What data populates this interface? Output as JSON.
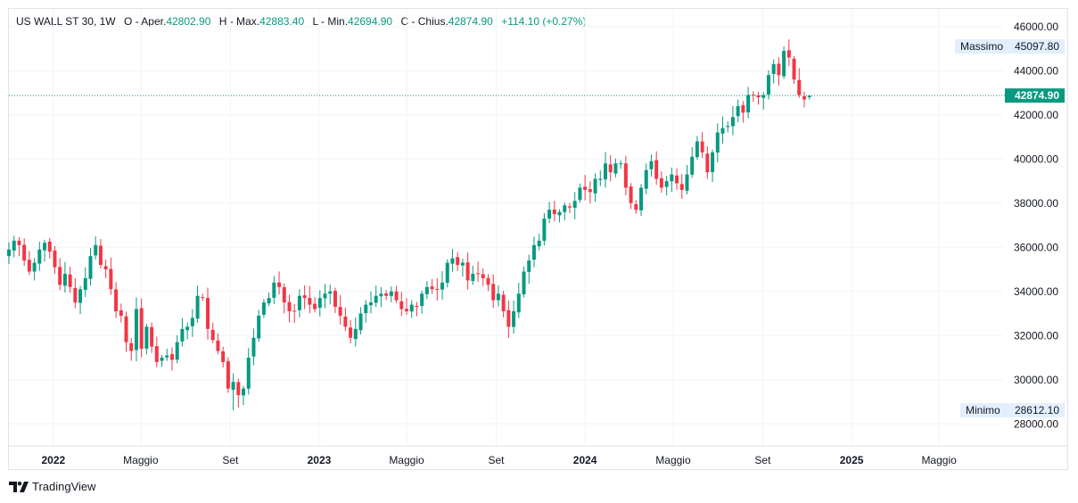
{
  "legend": {
    "symbol": "US WALL ST 30",
    "interval": "1W",
    "open_label": "O - Aper.",
    "open": "42802.90",
    "high_label": "H - Max.",
    "high": "42883.40",
    "low_label": "L - Min.",
    "low": "42694.90",
    "close_label": "C - Chius.",
    "close": "42874.90",
    "change": "+114.10 (+0.27%)"
  },
  "price_tags": {
    "max_label": "Massimo",
    "max_value": "45097.80",
    "min_label": "Minimo",
    "min_value": "28612.10",
    "last_value": "42874.90"
  },
  "brand": "TradingView",
  "colors": {
    "up": "#089981",
    "down": "#f23645",
    "grid": "#f0f3fa",
    "last": "#089981"
  },
  "chart_data": {
    "type": "candlestick",
    "interval": "weekly",
    "y_axis": {
      "range": [
        27000,
        46800
      ],
      "ticks": [
        "46000.00",
        "44000.00",
        "42000.00",
        "40000.00",
        "38000.00",
        "36000.00",
        "34000.00",
        "32000.00",
        "30000.00",
        "28000.00"
      ],
      "position": "right"
    },
    "x_axis": {
      "ticks": [
        {
          "label": "2022",
          "date": "2022-01-01",
          "bold": true
        },
        {
          "label": "Maggio",
          "date": "2022-05-01",
          "bold": false
        },
        {
          "label": "Set",
          "date": "2022-09-01",
          "bold": false
        },
        {
          "label": "2023",
          "date": "2023-01-01",
          "bold": true
        },
        {
          "label": "Maggio",
          "date": "2023-05-01",
          "bold": false
        },
        {
          "label": "Set",
          "date": "2023-09-01",
          "bold": false
        },
        {
          "label": "2024",
          "date": "2024-01-01",
          "bold": true
        },
        {
          "label": "Maggio",
          "date": "2024-05-01",
          "bold": false
        },
        {
          "label": "Set",
          "date": "2024-09-01",
          "bold": false
        },
        {
          "label": "2025",
          "date": "2025-01-01",
          "bold": true
        },
        {
          "label": "Maggio",
          "date": "2025-05-01",
          "bold": false
        }
      ],
      "range": [
        "2021-11-01",
        "2025-07-28"
      ]
    },
    "first_week": "2021-11-01",
    "highest": 45097.8,
    "lowest": 28612.1,
    "last_price": 42874.9,
    "weekly_closes": [
      35900,
      36300,
      36100,
      35400,
      34900,
      35300,
      35900,
      36200,
      35800,
      35100,
      34300,
      34800,
      34200,
      33500,
      34100,
      34600,
      35600,
      36100,
      35200,
      35000,
      34100,
      33100,
      32900,
      31700,
      31300,
      33200,
      31400,
      32400,
      31500,
      30800,
      31000,
      31100,
      30900,
      31700,
      32300,
      32400,
      32800,
      33800,
      33700,
      32300,
      31800,
      31300,
      30800,
      29600,
      29900,
      29300,
      29600,
      31000,
      31900,
      32900,
      33500,
      33700,
      34400,
      34200,
      33500,
      33100,
      33100,
      33800,
      33700,
      33400,
      33200,
      33700,
      33900,
      34000,
      33300,
      32900,
      32400,
      31900,
      32300,
      33000,
      33400,
      33500,
      33800,
      33900,
      33800,
      34000,
      33600,
      33200,
      33100,
      33400,
      33300,
      33900,
      34200,
      34100,
      34100,
      34400,
      35300,
      35500,
      35200,
      35300,
      34500,
      34800,
      34800,
      34600,
      34300,
      33600,
      33900,
      33100,
      32400,
      33100,
      33900,
      34900,
      35400,
      36100,
      36300,
      37300,
      37700,
      37500,
      37600,
      37900,
      37800,
      38100,
      38700,
      38600,
      38500,
      39100,
      39100,
      39800,
      39400,
      39800,
      39800,
      38700,
      38000,
      37700,
      38700,
      39500,
      39900,
      39100,
      38700,
      39000,
      39300,
      38900,
      38600,
      39300,
      40100,
      40800,
      40300,
      39400,
      40300,
      41200,
      41400,
      41500,
      41900,
      42400,
      42100,
      42900,
      42900,
      42800,
      42900,
      43800,
      44300,
      43800,
      44900,
      44600,
      43600,
      42900,
      42700,
      42874.9
    ]
  }
}
